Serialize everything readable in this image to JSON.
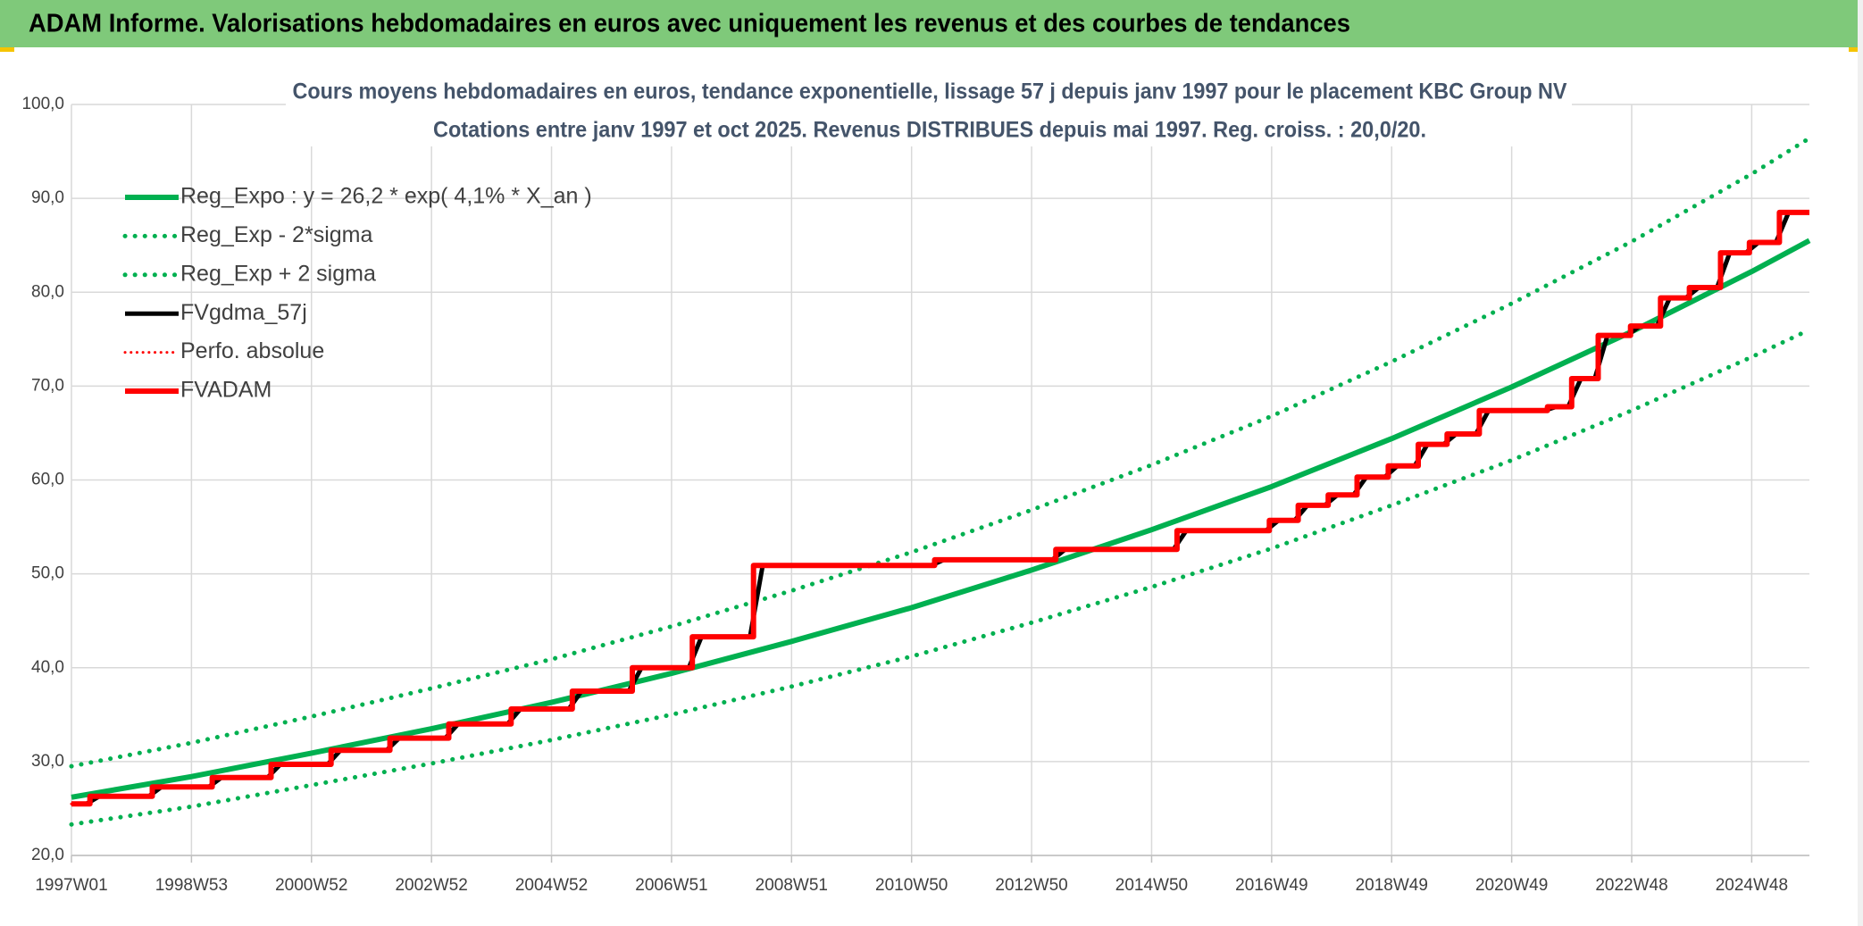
{
  "header": {
    "title": "ADAM Informe. Valorisations hebdomadaires en euros avec uniquement les revenus et des courbes de tendances"
  },
  "chart_data": {
    "type": "line",
    "title": "Cours moyens hebdomadaires en euros, tendance exponentielle, lissage 57 j depuis janv 1997 pour le placement KBC Group NV",
    "subtitle": "Cotations entre janv 1997 et oct 2025. Revenus DISTRIBUES depuis mai 1997. Reg. croiss. : 20,0/20.",
    "xlim": [
      0,
      1506
    ],
    "xticks": [
      {
        "value": 0,
        "label": "1997W01"
      },
      {
        "value": 104,
        "label": "1998W53"
      },
      {
        "value": 208,
        "label": "2000W52"
      },
      {
        "value": 312,
        "label": "2002W52"
      },
      {
        "value": 416,
        "label": "2004W52"
      },
      {
        "value": 520,
        "label": "2006W51"
      },
      {
        "value": 624,
        "label": "2008W51"
      },
      {
        "value": 728,
        "label": "2010W50"
      },
      {
        "value": 832,
        "label": "2012W50"
      },
      {
        "value": 936,
        "label": "2014W50"
      },
      {
        "value": 1040,
        "label": "2016W49"
      },
      {
        "value": 1144,
        "label": "2018W49"
      },
      {
        "value": 1248,
        "label": "2020W49"
      },
      {
        "value": 1352,
        "label": "2022W48"
      },
      {
        "value": 1456,
        "label": "2024W48"
      }
    ],
    "ylim": [
      20,
      100
    ],
    "yticks": [
      {
        "value": 20,
        "label": "20,0"
      },
      {
        "value": 30,
        "label": "30,0"
      },
      {
        "value": 40,
        "label": "40,0"
      },
      {
        "value": 50,
        "label": "50,0"
      },
      {
        "value": 60,
        "label": "60,0"
      },
      {
        "value": 70,
        "label": "70,0"
      },
      {
        "value": 80,
        "label": "80,0"
      },
      {
        "value": 90,
        "label": "90,0"
      },
      {
        "value": 100,
        "label": "100,0"
      }
    ],
    "grid": true,
    "legend": "upper left",
    "series": [
      {
        "name": "Reg_Expo : y = 26,2 * exp( 4,1% *  X_an )",
        "color": "#00b050",
        "style": "solid",
        "linewidth": 6,
        "x": [
          0,
          104,
          208,
          312,
          416,
          520,
          624,
          728,
          832,
          936,
          1040,
          1144,
          1248,
          1352,
          1456,
          1506
        ],
        "values": [
          26.2,
          28.4,
          30.9,
          33.5,
          36.3,
          39.4,
          42.8,
          46.4,
          50.4,
          54.7,
          59.3,
          64.4,
          69.9,
          75.8,
          82.2,
          85.5
        ]
      },
      {
        "name": "Reg_Exp - 2*sigma",
        "color": "#00b050",
        "style": "dotted",
        "linewidth": 5,
        "x": [
          0,
          104,
          208,
          312,
          416,
          520,
          624,
          728,
          832,
          936,
          1040,
          1144,
          1248,
          1352,
          1456,
          1506
        ],
        "values": [
          23.3,
          25.2,
          27.5,
          29.8,
          32.3,
          35.0,
          38.0,
          41.2,
          44.8,
          48.6,
          52.7,
          57.3,
          62.1,
          67.4,
          73.1,
          76.0
        ]
      },
      {
        "name": "Reg_Exp + 2 sigma",
        "color": "#00b050",
        "style": "dotted",
        "linewidth": 5,
        "x": [
          0,
          104,
          208,
          312,
          416,
          520,
          624,
          728,
          832,
          936,
          1040,
          1144,
          1248,
          1352,
          1456,
          1506
        ],
        "values": [
          29.5,
          32.0,
          34.8,
          37.8,
          40.9,
          44.4,
          48.2,
          52.3,
          56.8,
          61.6,
          66.8,
          72.6,
          78.8,
          85.4,
          92.6,
          96.4
        ]
      },
      {
        "name": "FVgdma_57j",
        "color": "#000000",
        "style": "solid",
        "linewidth": 5,
        "x": [
          0,
          13,
          24,
          67,
          78,
          119,
          130,
          170,
          181,
          222,
          233,
          273,
          284,
          324,
          335,
          378,
          389,
          431,
          442,
          483,
          494,
          535,
          546,
          588,
          599,
          745,
          756,
          850,
          861,
          955,
          966,
          1035,
          1046,
          1060,
          1071,
          1086,
          1097,
          1111,
          1122,
          1138,
          1149,
          1164,
          1175,
          1189,
          1200,
          1217,
          1228,
          1276,
          1287,
          1297,
          1308,
          1320,
          1331,
          1348,
          1359,
          1374,
          1385,
          1399,
          1410,
          1426,
          1437,
          1451,
          1462,
          1477,
          1488,
          1506
        ],
        "values": [
          25.5,
          25.5,
          26.3,
          26.3,
          27.3,
          27.3,
          28.3,
          28.3,
          29.7,
          29.7,
          31.2,
          31.2,
          32.5,
          32.5,
          34.0,
          34.0,
          35.6,
          35.6,
          37.5,
          37.5,
          40.0,
          40.0,
          43.3,
          43.3,
          50.9,
          50.9,
          51.5,
          51.5,
          52.6,
          52.6,
          54.6,
          54.6,
          55.7,
          55.7,
          57.3,
          57.3,
          58.4,
          58.4,
          60.3,
          60.3,
          61.5,
          61.5,
          63.8,
          63.8,
          64.9,
          64.9,
          67.4,
          67.4,
          67.8,
          67.8,
          70.8,
          70.8,
          75.4,
          75.4,
          76.4,
          76.4,
          79.4,
          79.4,
          80.5,
          80.5,
          84.2,
          84.2,
          85.3,
          85.3,
          88.5,
          88.5
        ]
      },
      {
        "name": "Perfo. absolue",
        "color": "#ff0000",
        "style": "dotted",
        "linewidth": 3,
        "x": [
          0,
          16,
          16,
          70,
          70,
          122,
          122,
          173,
          173,
          225,
          225,
          276,
          276,
          327,
          327,
          381,
          381,
          434,
          434,
          486,
          486,
          538,
          538,
          591,
          591,
          748,
          748,
          853,
          853,
          958,
          958,
          1038,
          1038,
          1063,
          1063,
          1089,
          1089,
          1114,
          1114,
          1141,
          1141,
          1167,
          1167,
          1192,
          1192,
          1220,
          1220,
          1279,
          1279,
          1300,
          1300,
          1323,
          1323,
          1351,
          1351,
          1377,
          1377,
          1402,
          1402,
          1429,
          1429,
          1454,
          1454,
          1480,
          1480,
          1506
        ],
        "values": [
          25.5,
          25.5,
          26.3,
          26.3,
          27.3,
          27.3,
          28.3,
          28.3,
          29.7,
          29.7,
          31.2,
          31.2,
          32.5,
          32.5,
          34.0,
          34.0,
          35.6,
          35.6,
          37.5,
          37.5,
          40.0,
          40.0,
          43.3,
          43.3,
          50.9,
          50.9,
          51.5,
          51.5,
          52.6,
          52.6,
          54.6,
          54.6,
          55.7,
          55.7,
          57.3,
          57.3,
          58.4,
          58.4,
          60.3,
          60.3,
          61.5,
          61.5,
          63.8,
          63.8,
          64.9,
          64.9,
          67.4,
          67.4,
          67.8,
          67.8,
          70.8,
          70.8,
          75.4,
          75.4,
          76.4,
          76.4,
          79.4,
          79.4,
          80.5,
          80.5,
          84.2,
          84.2,
          85.3,
          85.3,
          88.5,
          88.5
        ]
      },
      {
        "name": "FVADAM",
        "color": "#ff0000",
        "style": "solid",
        "linewidth": 6,
        "x": [
          0,
          16,
          16,
          70,
          70,
          122,
          122,
          173,
          173,
          225,
          225,
          276,
          276,
          327,
          327,
          381,
          381,
          434,
          434,
          486,
          486,
          538,
          538,
          591,
          591,
          748,
          748,
          853,
          853,
          958,
          958,
          1038,
          1038,
          1063,
          1063,
          1089,
          1089,
          1114,
          1114,
          1141,
          1141,
          1167,
          1167,
          1192,
          1192,
          1220,
          1220,
          1279,
          1279,
          1300,
          1300,
          1323,
          1323,
          1351,
          1351,
          1377,
          1377,
          1402,
          1402,
          1429,
          1429,
          1454,
          1454,
          1480,
          1480,
          1506
        ],
        "values": [
          25.5,
          25.5,
          26.3,
          26.3,
          27.3,
          27.3,
          28.3,
          28.3,
          29.7,
          29.7,
          31.2,
          31.2,
          32.5,
          32.5,
          34.0,
          34.0,
          35.6,
          35.6,
          37.5,
          37.5,
          40.0,
          40.0,
          43.3,
          43.3,
          50.9,
          50.9,
          51.5,
          51.5,
          52.6,
          52.6,
          54.6,
          54.6,
          55.7,
          55.7,
          57.3,
          57.3,
          58.4,
          58.4,
          60.3,
          60.3,
          61.5,
          61.5,
          63.8,
          63.8,
          64.9,
          64.9,
          67.4,
          67.4,
          67.8,
          67.8,
          70.8,
          70.8,
          75.4,
          75.4,
          76.4,
          76.4,
          79.4,
          79.4,
          80.5,
          80.5,
          84.2,
          84.2,
          85.3,
          85.3,
          88.5,
          88.5
        ]
      }
    ]
  }
}
